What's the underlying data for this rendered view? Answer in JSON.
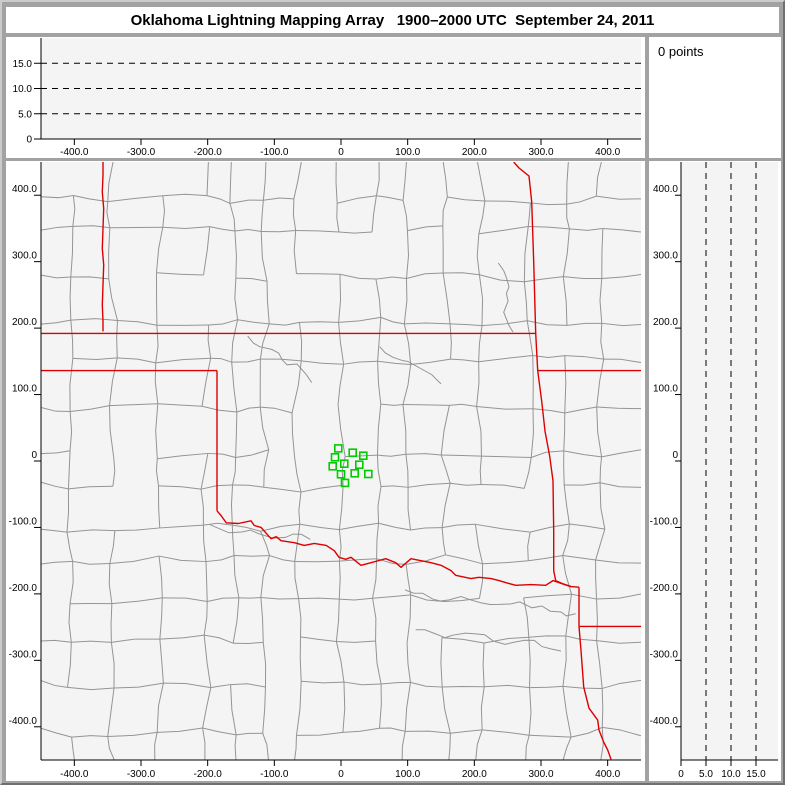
{
  "title": "Oklahoma Lightning Mapping Array   1900–2000 UTC  September 24, 2011",
  "status": {
    "points_label": "0 points"
  },
  "colors": {
    "frame": "#a2a2a2",
    "panel_bg": "#ffffff",
    "plot_bg": "#f4f4f4",
    "axis": "#000000",
    "county_line": "#949494",
    "state_border": "#dd0000",
    "station_marker": "#00cc00"
  },
  "chart_data": [
    {
      "id": "altitude-ew-panel",
      "type": "scatter",
      "description": "Altitude (km) vs east-west distance (km); 0 points plotted",
      "xlim": [
        -450,
        450
      ],
      "ylim": [
        0,
        20
      ],
      "xtick_values": [
        -400,
        -300,
        -200,
        -100,
        0,
        100,
        200,
        300,
        400
      ],
      "xtick_labels": [
        "-400.0",
        "-300.0",
        "-200.0",
        "-100.0",
        "0",
        "100.0",
        "200.0",
        "300.0",
        "400.0"
      ],
      "ytick_values": [
        15,
        10,
        5,
        0
      ],
      "ytick_labels": [
        "15.0",
        "10.0",
        "5.0",
        "0"
      ],
      "dashed_gridlines": [
        5,
        10,
        15
      ],
      "points": []
    },
    {
      "id": "plan-view-map",
      "type": "scatter",
      "description": "Plan view map (km from network center) with county lines, red state borders, green LMA station squares; 0 points plotted",
      "xlim": [
        -450,
        450
      ],
      "ylim": [
        -450,
        450
      ],
      "xtick_values": [
        -400,
        -300,
        -200,
        -100,
        0,
        100,
        200,
        300,
        400
      ],
      "xtick_labels": [
        "-400.0",
        "-300.0",
        "-200.0",
        "-100.0",
        "0",
        "100.0",
        "200.0",
        "300.0",
        "400.0"
      ],
      "ytick_values": [
        400,
        300,
        200,
        100,
        0,
        -100,
        -200,
        -300,
        -400
      ],
      "ytick_labels": [
        "400.0",
        "300.0",
        "200.0",
        "100.0",
        "0",
        "-100.0",
        "-200.0",
        "-300.0",
        "-400.0"
      ],
      "stations_km": [
        [
          -4,
          19
        ],
        [
          17.5,
          12.5
        ],
        [
          33.5,
          8
        ],
        [
          -9,
          5.5
        ],
        [
          5,
          -4
        ],
        [
          -12.5,
          -8
        ],
        [
          27.5,
          -5.5
        ],
        [
          0,
          -20
        ],
        [
          20.5,
          -18.5
        ],
        [
          41,
          -19.5
        ],
        [
          6,
          -33
        ]
      ],
      "state_borders_km": [
        [
          [
            -357,
            450
          ],
          [
            -357,
            430
          ],
          [
            -358,
            405
          ],
          [
            -356,
            380
          ],
          [
            -357,
            350
          ],
          [
            -358,
            320
          ],
          [
            -356,
            295
          ],
          [
            -357,
            265
          ],
          [
            -358,
            235
          ],
          [
            -357,
            210
          ],
          [
            -357,
            195
          ]
        ],
        [
          [
            -450,
            192
          ],
          [
            292,
            192
          ]
        ],
        [
          [
            -450,
            136
          ],
          [
            -186,
            136
          ]
        ],
        [
          [
            -186,
            136
          ],
          [
            -186,
            -75
          ]
        ],
        [
          [
            -186,
            -75
          ],
          [
            -180,
            -82
          ],
          [
            -172,
            -93
          ],
          [
            -154,
            -94
          ],
          [
            -135,
            -90
          ],
          [
            -130,
            -97
          ],
          [
            -120,
            -100
          ],
          [
            -105,
            -117
          ],
          [
            -97,
            -114
          ],
          [
            -90,
            -120
          ],
          [
            -70,
            -123
          ],
          [
            -55,
            -127
          ],
          [
            -40,
            -124
          ],
          [
            -22,
            -127
          ],
          [
            -10,
            -135
          ],
          [
            -3,
            -145
          ],
          [
            7,
            -148
          ],
          [
            15,
            -145
          ],
          [
            30,
            -157
          ],
          [
            45,
            -153
          ],
          [
            67,
            -147
          ],
          [
            82,
            -153
          ],
          [
            90,
            -160
          ],
          [
            105,
            -147
          ],
          [
            120,
            -150
          ],
          [
            135,
            -153
          ],
          [
            150,
            -157
          ],
          [
            165,
            -165
          ],
          [
            172,
            -172
          ],
          [
            195,
            -177
          ],
          [
            207,
            -175
          ],
          [
            225,
            -177
          ],
          [
            237,
            -180
          ],
          [
            247,
            -183
          ],
          [
            262,
            -187
          ],
          [
            285,
            -186
          ],
          [
            307,
            -187
          ],
          [
            318,
            -180
          ],
          [
            330,
            -184
          ],
          [
            345,
            -189
          ],
          [
            357,
            -190
          ]
        ],
        [
          [
            259,
            450
          ],
          [
            267,
            441
          ],
          [
            282,
            429
          ],
          [
            286,
            390
          ],
          [
            289,
            300
          ],
          [
            292,
            192
          ],
          [
            295,
            136
          ],
          [
            301,
            90
          ],
          [
            306,
            45
          ],
          [
            313,
            7
          ],
          [
            318,
            -30
          ],
          [
            319,
            -105
          ],
          [
            319,
            -165
          ],
          [
            322,
            -180
          ],
          [
            333,
            -185
          ],
          [
            345,
            -189
          ]
        ],
        [
          [
            295,
            136
          ],
          [
            450,
            136
          ]
        ],
        [
          [
            357,
            -190
          ],
          [
            357,
            -249
          ]
        ],
        [
          [
            357,
            -249
          ],
          [
            450,
            -249
          ]
        ],
        [
          [
            357,
            -249
          ],
          [
            360,
            -285
          ],
          [
            364,
            -340
          ],
          [
            370,
            -364
          ],
          [
            372,
            -372
          ],
          [
            385,
            -390
          ],
          [
            387,
            -405
          ],
          [
            394,
            -423
          ],
          [
            400,
            -435
          ],
          [
            405,
            -449
          ]
        ]
      ],
      "rivers_km": [
        [
          [
            -140,
            188
          ],
          [
            -122,
            172
          ],
          [
            -104,
            168
          ],
          [
            -88,
            152
          ],
          [
            -66,
            146
          ],
          [
            -52,
            130
          ],
          [
            -44,
            118
          ]
        ],
        [
          [
            58,
            172
          ],
          [
            78,
            156
          ],
          [
            100,
            150
          ],
          [
            118,
            140
          ],
          [
            136,
            130
          ],
          [
            150,
            116
          ]
        ],
        [
          [
            -196,
            -96
          ],
          [
            -168,
            -108
          ],
          [
            -136,
            -104
          ],
          [
            -102,
            -116
          ],
          [
            -72,
            -110
          ],
          [
            -46,
            -118
          ]
        ],
        [
          [
            96,
            -194
          ],
          [
            138,
            -208
          ],
          [
            180,
            -204
          ],
          [
            224,
            -216
          ],
          [
            268,
            -212
          ],
          [
            314,
            -226
          ],
          [
            352,
            -230
          ]
        ],
        [
          [
            112,
            -254
          ],
          [
            156,
            -266
          ],
          [
            200,
            -260
          ],
          [
            246,
            -276
          ],
          [
            290,
            -270
          ],
          [
            330,
            -286
          ]
        ],
        [
          [
            236,
            298
          ],
          [
            252,
            262
          ],
          [
            244,
            224
          ],
          [
            258,
            194
          ]
        ]
      ],
      "points": []
    },
    {
      "id": "altitude-ns-panel",
      "type": "scatter",
      "description": "North-south distance (km) vs altitude (km); 0 points plotted",
      "xlim": [
        0,
        20
      ],
      "ylim": [
        -450,
        450
      ],
      "xtick_values": [
        0,
        5,
        10,
        15
      ],
      "xtick_labels": [
        "0",
        "5.0",
        "10.0",
        "15.0"
      ],
      "ytick_values": [
        400,
        300,
        200,
        100,
        0,
        -100,
        -200,
        -300,
        -400
      ],
      "ytick_labels": [
        "400.0",
        "300.0",
        "200.0",
        "100.0",
        "0",
        "-100.0",
        "-200.0",
        "-300.0",
        "-400.0"
      ],
      "dashed_gridlines": [
        5,
        10,
        15
      ],
      "points": []
    }
  ]
}
